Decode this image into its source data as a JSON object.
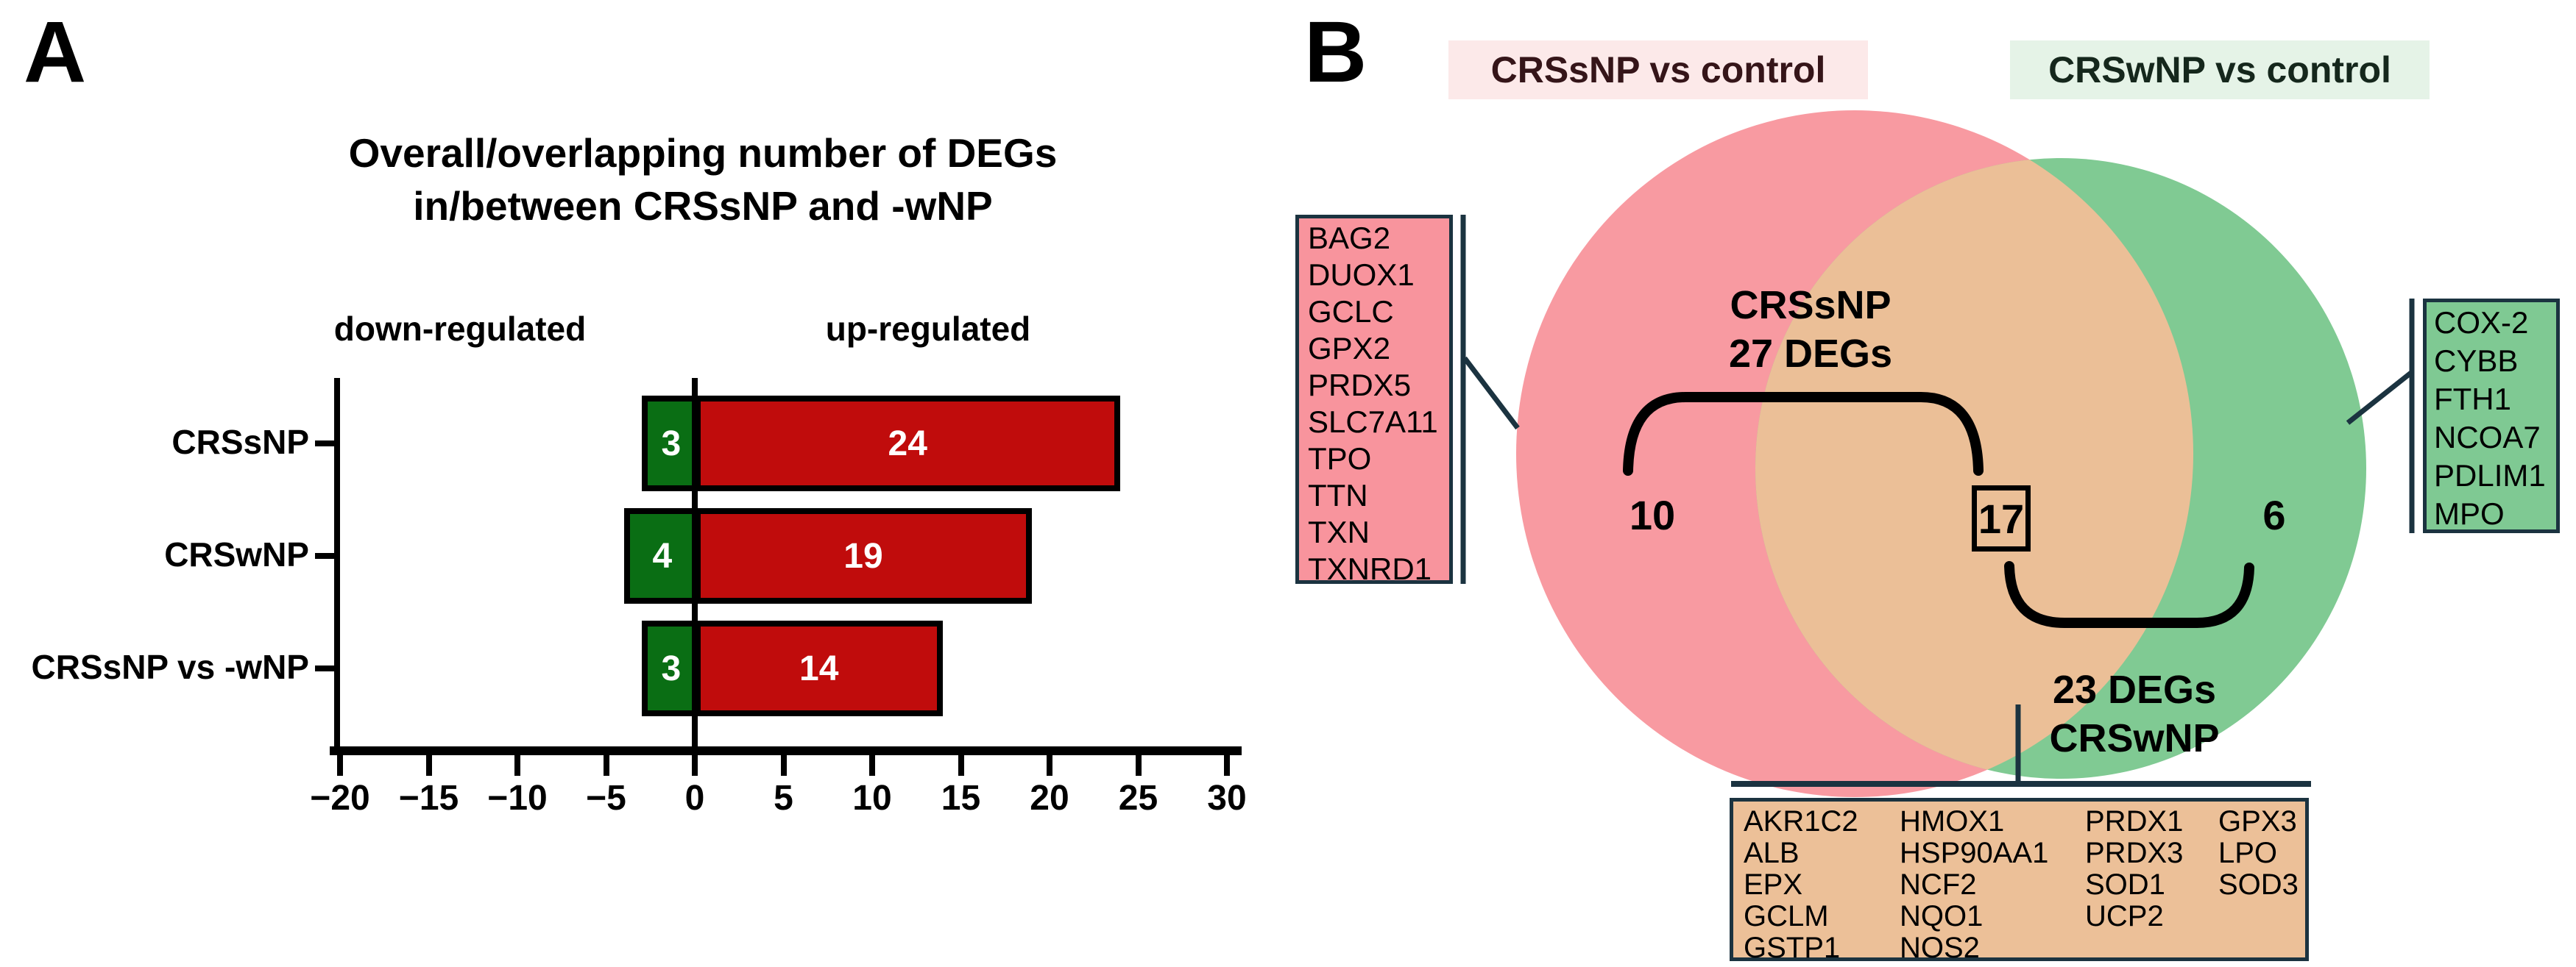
{
  "figure": {
    "panel_a_label": "A",
    "panel_b_label": "B"
  },
  "chart_data": {
    "type": "bar",
    "orientation": "horizontal",
    "title": "Overall/overlapping number of DEGs in/between CRSsNP and -wNP",
    "title_line1": "Overall/overlapping number of DEGs",
    "title_line2": "in/between CRSsNP and -wNP",
    "categories": [
      "CRSsNP",
      "CRSwNP",
      "CRSsNP vs -wNP"
    ],
    "series": [
      {
        "name": "down-regulated",
        "color": "#0A6E14",
        "values": [
          -3,
          -4,
          -3
        ],
        "bar_labels": [
          "3",
          "4",
          "3"
        ]
      },
      {
        "name": "up-regulated",
        "color": "#C00C0C",
        "values": [
          24,
          19,
          14
        ],
        "bar_labels": [
          "24",
          "19",
          "14"
        ]
      }
    ],
    "bar_label_color": "#FFFFFF",
    "xlim": [
      -20,
      30
    ],
    "xticks": [
      -20,
      -15,
      -10,
      -5,
      0,
      5,
      10,
      15,
      20,
      25,
      30
    ],
    "grid": false,
    "axis_color": "#000000"
  },
  "venn": {
    "left_header": "CRSsNP vs control",
    "right_header": "CRSwNP vs control",
    "left_header_bg": "#FCE9E9",
    "left_header_color": "#351519",
    "right_header_bg": "#E5F3E7",
    "right_header_color": "#15271C",
    "left_fill": "#F89AA1",
    "right_fill": "#80CA93",
    "overlap_fill": "#EBBF97",
    "left_only_count": "10",
    "overlap_count": "17",
    "right_only_count": "6",
    "left_total_line1": "CRSsNP",
    "left_total_line2": "27 DEGs",
    "right_total_line1": "23 DEGs",
    "right_total_line2": "CRSwNP",
    "left_genes": [
      "BAG2",
      "DUOX1",
      "GCLC",
      "GPX2",
      "PRDX5",
      "SLC7A11",
      "TPO",
      "TTN",
      "TXN",
      "TXNRD1"
    ],
    "right_genes": [
      "COX-2",
      "CYBB",
      "FTH1",
      "NCOA7",
      "PDLIM1",
      "MPO"
    ],
    "overlap_gene_columns": [
      [
        "AKR1C2",
        "ALB",
        "EPX",
        "GCLM",
        "GSTP1"
      ],
      [
        "HMOX1",
        "HSP90AA1",
        "NCF2",
        "NQO1",
        "NOS2"
      ],
      [
        "PRDX1",
        "PRDX3",
        "SOD1",
        "UCP2"
      ],
      [
        "GPX3",
        "LPO",
        "SOD3"
      ]
    ],
    "left_box_fill": "#F8949D",
    "right_box_fill": "#7FC993",
    "overlap_box_fill": "#ECC098",
    "box_border_color": "#1B3340",
    "callout_line_color": "#1B3340",
    "brace_color": "#000000"
  }
}
